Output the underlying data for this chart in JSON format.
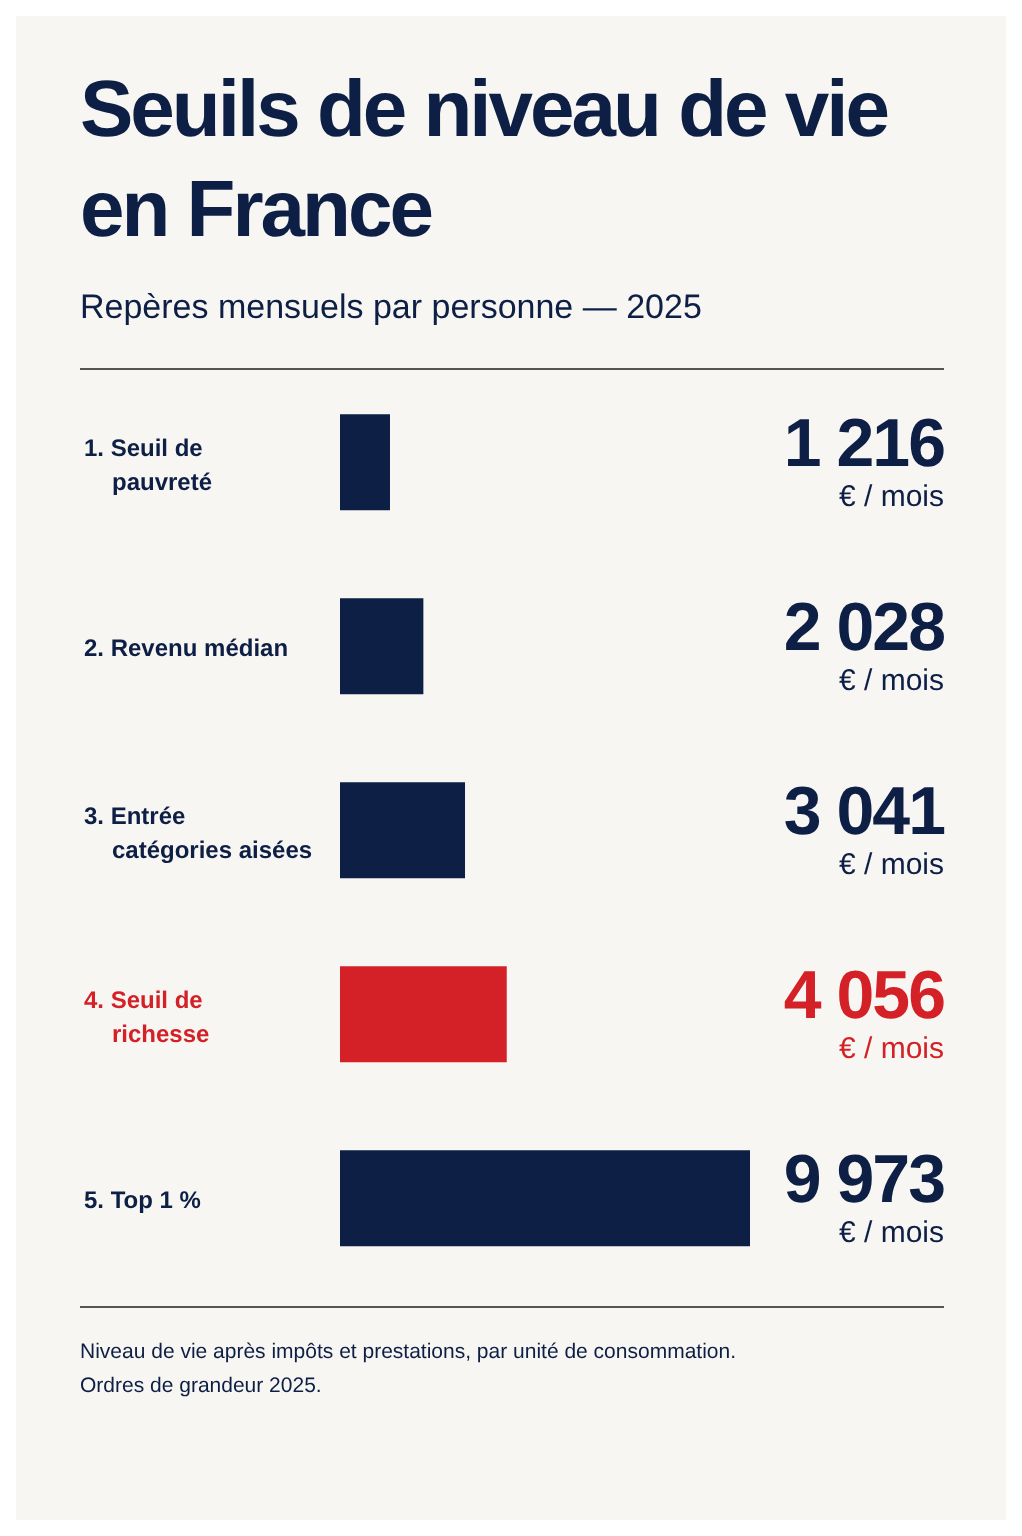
{
  "chart_data": {
    "type": "bar",
    "orientation": "horizontal",
    "title": "Seuils de niveau de vie en France",
    "subtitle": "Repères mensuels par personne — 2025",
    "categories": [
      "1. Seuil de pauvreté",
      "2. Revenu médian",
      "3. Entrée catégories aisées",
      "4. Seuil de richesse",
      "5. Top 1 %"
    ],
    "values": [
      1216,
      2028,
      3041,
      4056,
      9973
    ],
    "colors": [
      "#0d1f45",
      "#0d1f45",
      "#0d1f45",
      "#d42027",
      "#0d1f45"
    ],
    "value_labels": [
      "1 216",
      "2 028",
      "3 041",
      "4 056",
      "9 973"
    ],
    "annotations": [
      "€ / mois",
      "€ / mois",
      "€ / mois",
      "€ / mois",
      "€ / mois",
      "Niveau de vie après impôts et prestations, par unité de consommation.",
      "Ordres de grandeur 2025."
    ]
  }
}
